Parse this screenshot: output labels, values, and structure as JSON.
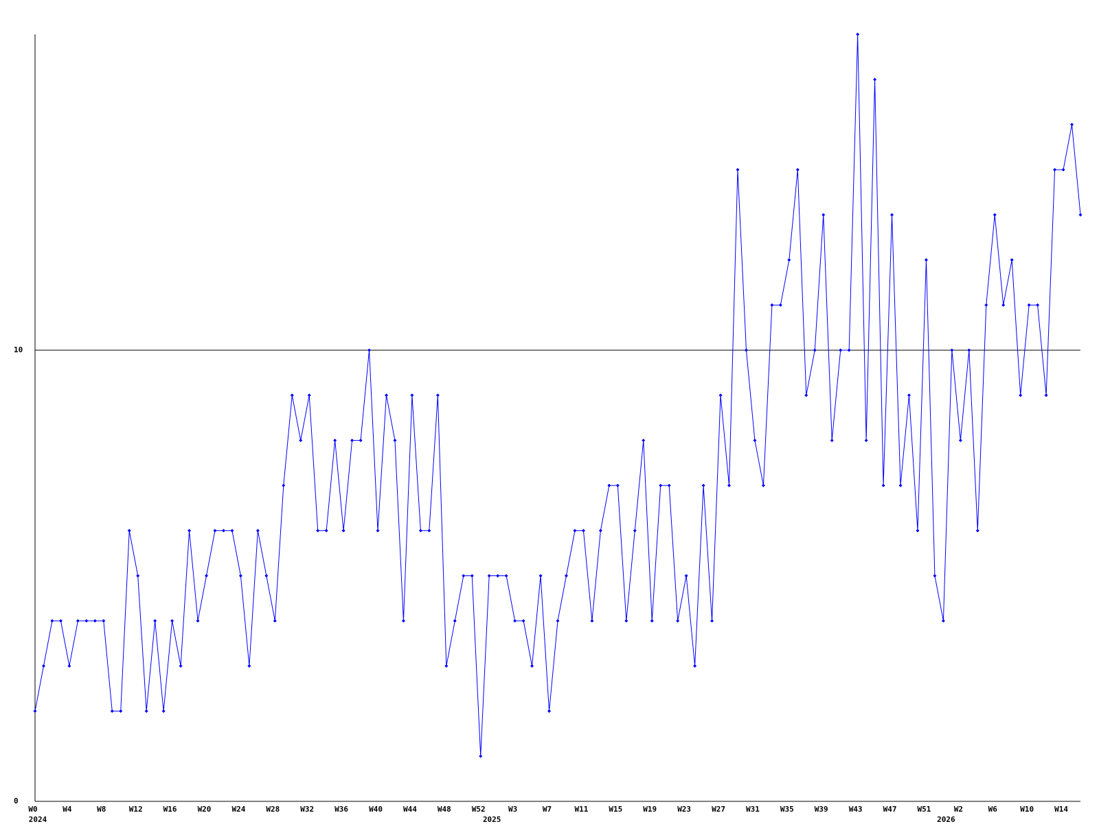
{
  "chart_data": {
    "type": "line",
    "categories": [
      "W0",
      null,
      null,
      null,
      "W4",
      null,
      null,
      null,
      "W8",
      null,
      null,
      null,
      "W12",
      null,
      null,
      null,
      "W16",
      null,
      null,
      null,
      "W20",
      null,
      null,
      null,
      "W24",
      null,
      null,
      null,
      "W28",
      null,
      null,
      null,
      "W32",
      null,
      null,
      null,
      "W36",
      null,
      null,
      null,
      "W40",
      null,
      null,
      null,
      "W44",
      null,
      null,
      null,
      "W48",
      null,
      null,
      null,
      "W52",
      null,
      null,
      null,
      "W3",
      null,
      null,
      null,
      "W7",
      null,
      null,
      null,
      "W11",
      null,
      null,
      null,
      "W15",
      null,
      null,
      null,
      "W19",
      null,
      null,
      null,
      "W23",
      null,
      null,
      null,
      "W27",
      null,
      null,
      null,
      "W31",
      null,
      null,
      null,
      "W35",
      null,
      null,
      null,
      "W39",
      null,
      null,
      null,
      "W43",
      null,
      null,
      null,
      "W47",
      null,
      null,
      null,
      "W51",
      null,
      null,
      null,
      "W2",
      null,
      null,
      null,
      "W6",
      null,
      null,
      null,
      "W10",
      null,
      null,
      null,
      "W14",
      null,
      null
    ],
    "category_years": [
      "2024",
      null,
      null,
      null,
      null,
      null,
      null,
      null,
      null,
      null,
      null,
      null,
      null,
      null,
      null,
      null,
      null,
      null,
      null,
      null,
      null,
      null,
      null,
      null,
      null,
      null,
      null,
      null,
      null,
      null,
      null,
      null,
      null,
      null,
      null,
      null,
      null,
      null,
      null,
      null,
      null,
      null,
      null,
      null,
      null,
      null,
      null,
      null,
      null,
      null,
      null,
      null,
      null,
      "2025",
      null,
      null,
      null,
      null,
      null,
      null,
      null,
      null,
      null,
      null,
      null,
      null,
      null,
      null,
      null,
      null,
      null,
      null,
      null,
      null,
      null,
      null,
      null,
      null,
      null,
      null,
      null,
      null,
      null,
      null,
      null,
      null,
      null,
      null,
      null,
      null,
      null,
      null,
      null,
      null,
      null,
      null,
      null,
      null,
      null,
      null,
      null,
      null,
      null,
      null,
      null,
      null,
      "2026",
      null,
      null,
      null,
      null,
      null,
      null,
      null,
      null,
      null,
      null,
      null,
      null,
      null,
      null,
      null,
      null
    ],
    "series": [
      {
        "color": "#0000ff",
        "values": [
          2,
          3,
          4,
          4,
          3,
          4,
          4,
          4,
          4,
          2,
          2,
          6,
          5,
          2,
          4,
          2,
          4,
          3,
          6,
          4,
          5,
          6,
          6,
          6,
          5,
          3,
          6,
          5,
          4,
          7,
          9,
          8,
          9,
          6,
          6,
          8,
          6,
          8,
          8,
          10,
          6,
          9,
          8,
          4,
          9,
          6,
          6,
          9,
          3,
          4,
          5,
          5,
          1,
          5,
          5,
          5,
          4,
          4,
          3,
          5,
          2,
          4,
          5,
          6,
          6,
          4,
          6,
          7,
          7,
          4,
          6,
          8,
          4,
          7,
          7,
          4,
          5,
          3,
          7,
          4,
          9,
          7,
          14,
          10,
          8,
          7,
          11,
          11,
          12,
          14,
          9,
          10,
          13,
          8,
          10,
          10,
          17,
          8,
          16,
          7,
          13,
          7,
          9,
          6,
          12,
          5,
          4,
          10,
          8,
          10,
          6,
          11,
          13,
          11,
          12,
          9,
          11,
          11,
          9,
          14,
          14,
          15,
          13
        ]
      }
    ],
    "ylim": [
      0,
      17
    ],
    "yticks": [
      0,
      10
    ],
    "grid": true
  }
}
